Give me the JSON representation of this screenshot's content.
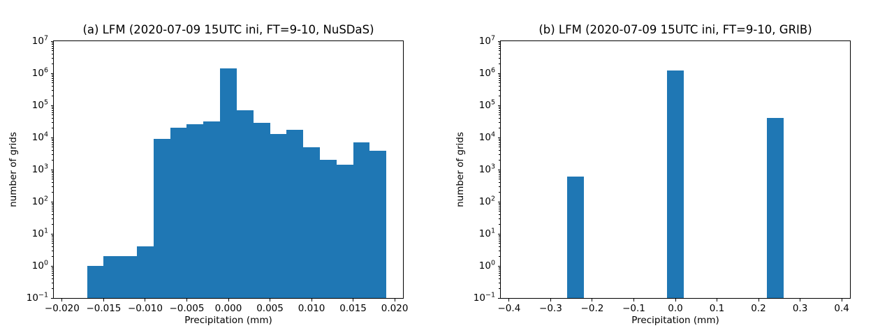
{
  "figure": {
    "background": "#ffffff",
    "text_color": "#000000",
    "bar_color": "#1f77b4"
  },
  "chart_data": [
    {
      "type": "bar",
      "subtype": "histogram",
      "title": "(a) LFM (2020-07-09 15UTC ini, FT=9-10, NuSDaS)",
      "xlabel": "Precipitation (mm)",
      "ylabel": "number of grids",
      "yscale": "log",
      "grid": false,
      "legend": null,
      "bar_color": "#1f77b4",
      "xlim": [
        -0.021,
        0.021
      ],
      "ylim_log10": [
        -1,
        7
      ],
      "bars": [
        {
          "x0": -0.017,
          "x1": -0.015,
          "count": 1
        },
        {
          "x0": -0.015,
          "x1": -0.013,
          "count": 2
        },
        {
          "x0": -0.013,
          "x1": -0.011,
          "count": 2
        },
        {
          "x0": -0.011,
          "x1": -0.009,
          "count": 4
        },
        {
          "x0": -0.009,
          "x1": -0.007,
          "count": 9000
        },
        {
          "x0": -0.007,
          "x1": -0.005,
          "count": 20000
        },
        {
          "x0": -0.005,
          "x1": -0.003,
          "count": 26000
        },
        {
          "x0": -0.003,
          "x1": -0.001,
          "count": 32000
        },
        {
          "x0": -0.001,
          "x1": 0.001,
          "count": 1400000
        },
        {
          "x0": 0.001,
          "x1": 0.003,
          "count": 70000
        },
        {
          "x0": 0.003,
          "x1": 0.005,
          "count": 28000
        },
        {
          "x0": 0.005,
          "x1": 0.007,
          "count": 13000
        },
        {
          "x0": 0.007,
          "x1": 0.009,
          "count": 17000
        },
        {
          "x0": 0.009,
          "x1": 0.011,
          "count": 5000
        },
        {
          "x0": 0.011,
          "x1": 0.013,
          "count": 2000
        },
        {
          "x0": 0.013,
          "x1": 0.015,
          "count": 1400
        },
        {
          "x0": 0.015,
          "x1": 0.017,
          "count": 7000
        },
        {
          "x0": 0.017,
          "x1": 0.019,
          "count": 3900
        }
      ],
      "xticks": [
        {
          "value": -0.02,
          "label": "−0.020"
        },
        {
          "value": -0.015,
          "label": "−0.015"
        },
        {
          "value": -0.01,
          "label": "−0.010"
        },
        {
          "value": -0.005,
          "label": "−0.005"
        },
        {
          "value": 0.0,
          "label": "0.000"
        },
        {
          "value": 0.005,
          "label": "0.005"
        },
        {
          "value": 0.01,
          "label": "0.010"
        },
        {
          "value": 0.015,
          "label": "0.015"
        },
        {
          "value": 0.02,
          "label": "0.020"
        }
      ],
      "ytick_exponents": [
        7,
        6,
        5,
        4,
        3,
        2,
        1,
        0,
        -1
      ]
    },
    {
      "type": "bar",
      "subtype": "histogram",
      "title": "(b) LFM (2020-07-09 15UTC ini, FT=9-10, GRIB)",
      "xlabel": "Precipitation (mm)",
      "ylabel": "number of grids",
      "yscale": "log",
      "grid": false,
      "legend": null,
      "bar_color": "#1f77b4",
      "xlim": [
        -0.42,
        0.42
      ],
      "ylim_log10": [
        -1,
        7
      ],
      "bars": [
        {
          "x0": -0.26,
          "x1": -0.22,
          "count": 600
        },
        {
          "x0": -0.02,
          "x1": 0.02,
          "count": 1250000
        },
        {
          "x0": 0.22,
          "x1": 0.26,
          "count": 40000
        }
      ],
      "xticks": [
        {
          "value": -0.4,
          "label": "−0.4"
        },
        {
          "value": -0.3,
          "label": "−0.3"
        },
        {
          "value": -0.2,
          "label": "−0.2"
        },
        {
          "value": -0.1,
          "label": "−0.1"
        },
        {
          "value": 0.0,
          "label": "0.0"
        },
        {
          "value": 0.1,
          "label": "0.1"
        },
        {
          "value": 0.2,
          "label": "0.2"
        },
        {
          "value": 0.3,
          "label": "0.3"
        },
        {
          "value": 0.4,
          "label": "0.4"
        }
      ],
      "ytick_exponents": [
        7,
        6,
        5,
        4,
        3,
        2,
        1,
        0,
        -1
      ]
    }
  ]
}
